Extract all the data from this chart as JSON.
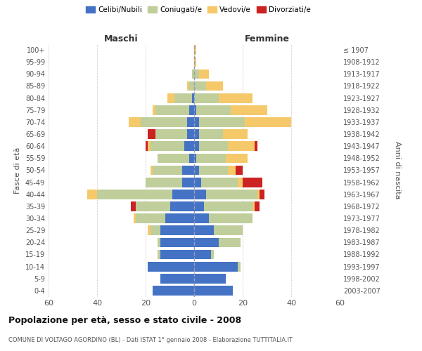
{
  "age_groups": [
    "0-4",
    "5-9",
    "10-14",
    "15-19",
    "20-24",
    "25-29",
    "30-34",
    "35-39",
    "40-44",
    "45-49",
    "50-54",
    "55-59",
    "60-64",
    "65-69",
    "70-74",
    "75-79",
    "80-84",
    "85-89",
    "90-94",
    "95-99",
    "100+"
  ],
  "birth_years": [
    "2003-2007",
    "1998-2002",
    "1993-1997",
    "1988-1992",
    "1983-1987",
    "1978-1982",
    "1973-1977",
    "1968-1972",
    "1963-1967",
    "1958-1962",
    "1953-1957",
    "1948-1952",
    "1943-1947",
    "1938-1942",
    "1933-1937",
    "1928-1932",
    "1923-1927",
    "1918-1922",
    "1913-1917",
    "1908-1912",
    "≤ 1907"
  ],
  "colors": {
    "celibi": "#4472C4",
    "coniugati": "#BFCE9A",
    "vedovi": "#F5C96A",
    "divorziati": "#CC2222"
  },
  "maschi": {
    "celibi": [
      17,
      14,
      19,
      14,
      14,
      14,
      12,
      10,
      9,
      5,
      5,
      2,
      4,
      3,
      3,
      2,
      1,
      0,
      0,
      0,
      0
    ],
    "coniugati": [
      0,
      0,
      0,
      1,
      1,
      4,
      12,
      14,
      31,
      15,
      12,
      13,
      14,
      13,
      19,
      14,
      7,
      2,
      1,
      0,
      0
    ],
    "vedovi": [
      0,
      0,
      0,
      0,
      0,
      1,
      1,
      0,
      4,
      0,
      1,
      0,
      1,
      0,
      5,
      1,
      3,
      1,
      0,
      0,
      0
    ],
    "divorziati": [
      0,
      0,
      0,
      0,
      0,
      0,
      0,
      2,
      0,
      0,
      0,
      0,
      1,
      3,
      0,
      0,
      0,
      0,
      0,
      0,
      0
    ]
  },
  "femmine": {
    "celibi": [
      16,
      13,
      18,
      7,
      10,
      8,
      6,
      4,
      5,
      3,
      2,
      1,
      2,
      2,
      2,
      1,
      0,
      0,
      0,
      0,
      0
    ],
    "coniugati": [
      0,
      0,
      1,
      1,
      9,
      12,
      18,
      20,
      21,
      15,
      12,
      12,
      12,
      10,
      19,
      14,
      10,
      5,
      2,
      0,
      0
    ],
    "vedovi": [
      0,
      0,
      0,
      0,
      0,
      0,
      0,
      1,
      1,
      2,
      3,
      9,
      11,
      10,
      19,
      15,
      14,
      7,
      4,
      1,
      1
    ],
    "divorziati": [
      0,
      0,
      0,
      0,
      0,
      0,
      0,
      2,
      2,
      8,
      3,
      0,
      1,
      0,
      0,
      0,
      0,
      0,
      0,
      0,
      0
    ]
  },
  "xlim": 60,
  "title": "Popolazione per età, sesso e stato civile - 2008",
  "subtitle": "COMUNE DI VOLTAGO AGORDINO (BL) - Dati ISTAT 1° gennaio 2008 - Elaborazione TUTTITALIA.IT",
  "xlabel_left": "Maschi",
  "xlabel_right": "Femmine",
  "ylabel_left": "Fasce di età",
  "ylabel_right": "Anni di nascita",
  "legend_labels": [
    "Celibi/Nubili",
    "Coniugati/e",
    "Vedovi/e",
    "Divorziati/e"
  ],
  "bg_color": "#FFFFFF",
  "grid_color": "#CCCCCC",
  "tick_color": "#555555"
}
